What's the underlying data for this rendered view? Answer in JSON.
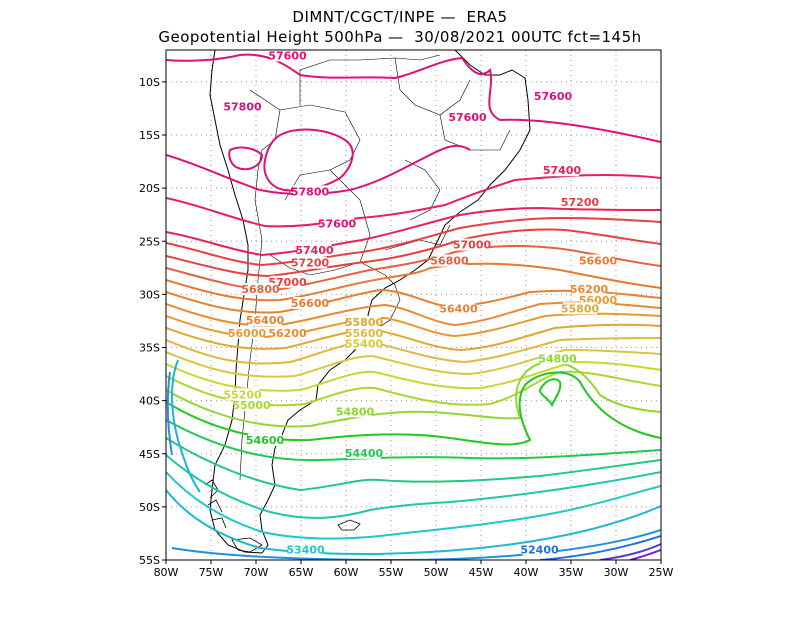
{
  "header": {
    "line1": "DIMNT/CGCT/INPE —  ERA5",
    "line2": "Geopotential Height 500hPa —  30/08/2021 00UTC fct=145h"
  },
  "map": {
    "lon_range": [
      -80,
      -25
    ],
    "lat_range": [
      -55,
      -7
    ],
    "grid": true,
    "lat_ticks": [
      {
        "value": -10,
        "label": "10S"
      },
      {
        "value": -15,
        "label": "15S"
      },
      {
        "value": -20,
        "label": "20S"
      },
      {
        "value": -25,
        "label": "25S"
      },
      {
        "value": -30,
        "label": "30S"
      },
      {
        "value": -35,
        "label": "35S"
      },
      {
        "value": -40,
        "label": "40S"
      },
      {
        "value": -45,
        "label": "45S"
      },
      {
        "value": -50,
        "label": "50S"
      },
      {
        "value": -55,
        "label": "55S"
      }
    ],
    "lon_ticks": [
      {
        "value": -80,
        "label": "80W"
      },
      {
        "value": -75,
        "label": "75W"
      },
      {
        "value": -70,
        "label": "70W"
      },
      {
        "value": -65,
        "label": "65W"
      },
      {
        "value": -60,
        "label": "60W"
      },
      {
        "value": -55,
        "label": "55W"
      },
      {
        "value": -50,
        "label": "50W"
      },
      {
        "value": -45,
        "label": "45W"
      },
      {
        "value": -40,
        "label": "40W"
      },
      {
        "value": -35,
        "label": "35W"
      },
      {
        "value": -30,
        "label": "30W"
      },
      {
        "value": -25,
        "label": "25W"
      }
    ],
    "contour_labels": [
      {
        "text": "57600",
        "lon": -66.5,
        "lat": -7.7,
        "color": "#e0107a"
      },
      {
        "text": "57600",
        "lon": -37.0,
        "lat": -11.5,
        "color": "#e0107a"
      },
      {
        "text": "57800",
        "lon": -71.5,
        "lat": -12.5,
        "color": "#e0107a"
      },
      {
        "text": "57600",
        "lon": -46.5,
        "lat": -13.5,
        "color": "#e0107a"
      },
      {
        "text": "57400",
        "lon": -36.0,
        "lat": -18.5,
        "color": "#e8205a"
      },
      {
        "text": "57800",
        "lon": -64.0,
        "lat": -20.5,
        "color": "#e0107a"
      },
      {
        "text": "57200",
        "lon": -34.0,
        "lat": -21.5,
        "color": "#e84040"
      },
      {
        "text": "57600",
        "lon": -61.0,
        "lat": -23.5,
        "color": "#e0107a"
      },
      {
        "text": "57400",
        "lon": -63.5,
        "lat": -26.0,
        "color": "#e8205a"
      },
      {
        "text": "57000",
        "lon": -46.0,
        "lat": -25.5,
        "color": "#e84040"
      },
      {
        "text": "57200",
        "lon": -64.0,
        "lat": -27.2,
        "color": "#e84040"
      },
      {
        "text": "56800",
        "lon": -48.5,
        "lat": -27.0,
        "color": "#e86040"
      },
      {
        "text": "56600",
        "lon": -32.0,
        "lat": -27.0,
        "color": "#e87a30"
      },
      {
        "text": "57000",
        "lon": -66.5,
        "lat": -29.0,
        "color": "#e84040"
      },
      {
        "text": "56800",
        "lon": -69.5,
        "lat": -29.7,
        "color": "#e86040"
      },
      {
        "text": "56200",
        "lon": -33.0,
        "lat": -29.7,
        "color": "#e88a30"
      },
      {
        "text": "56600",
        "lon": -64.0,
        "lat": -31.0,
        "color": "#e87a30"
      },
      {
        "text": "56000",
        "lon": -32.0,
        "lat": -30.7,
        "color": "#e89a30"
      },
      {
        "text": "56400",
        "lon": -47.5,
        "lat": -31.5,
        "color": "#e88030"
      },
      {
        "text": "55800",
        "lon": -34.0,
        "lat": -31.5,
        "color": "#e0a830"
      },
      {
        "text": "56400",
        "lon": -69.0,
        "lat": -32.6,
        "color": "#e88030"
      },
      {
        "text": "55800",
        "lon": -58.0,
        "lat": -32.8,
        "color": "#e0a830"
      },
      {
        "text": "55600",
        "lon": -58.0,
        "lat": -33.8,
        "color": "#e0b840"
      },
      {
        "text": "56200",
        "lon": -66.5,
        "lat": -33.8,
        "color": "#e88a30"
      },
      {
        "text": "56000",
        "lon": -71.0,
        "lat": -33.8,
        "color": "#e89a30"
      },
      {
        "text": "55400",
        "lon": -58.0,
        "lat": -34.8,
        "color": "#d8c840"
      },
      {
        "text": "54800",
        "lon": -36.5,
        "lat": -36.2,
        "color": "#90d830"
      },
      {
        "text": "55200",
        "lon": -71.5,
        "lat": -39.6,
        "color": "#c8d830"
      },
      {
        "text": "55000",
        "lon": -70.5,
        "lat": -40.6,
        "color": "#a8d830"
      },
      {
        "text": "54800",
        "lon": -59.0,
        "lat": -41.2,
        "color": "#90d830"
      },
      {
        "text": "54600",
        "lon": -69.0,
        "lat": -43.9,
        "color": "#20c820"
      },
      {
        "text": "54400",
        "lon": -58.0,
        "lat": -45.1,
        "color": "#20c850"
      },
      {
        "text": "53400",
        "lon": -64.5,
        "lat": -54.2,
        "color": "#20c8c8"
      },
      {
        "text": "52400",
        "lon": -38.5,
        "lat": -54.2,
        "color": "#2070e0"
      }
    ]
  }
}
